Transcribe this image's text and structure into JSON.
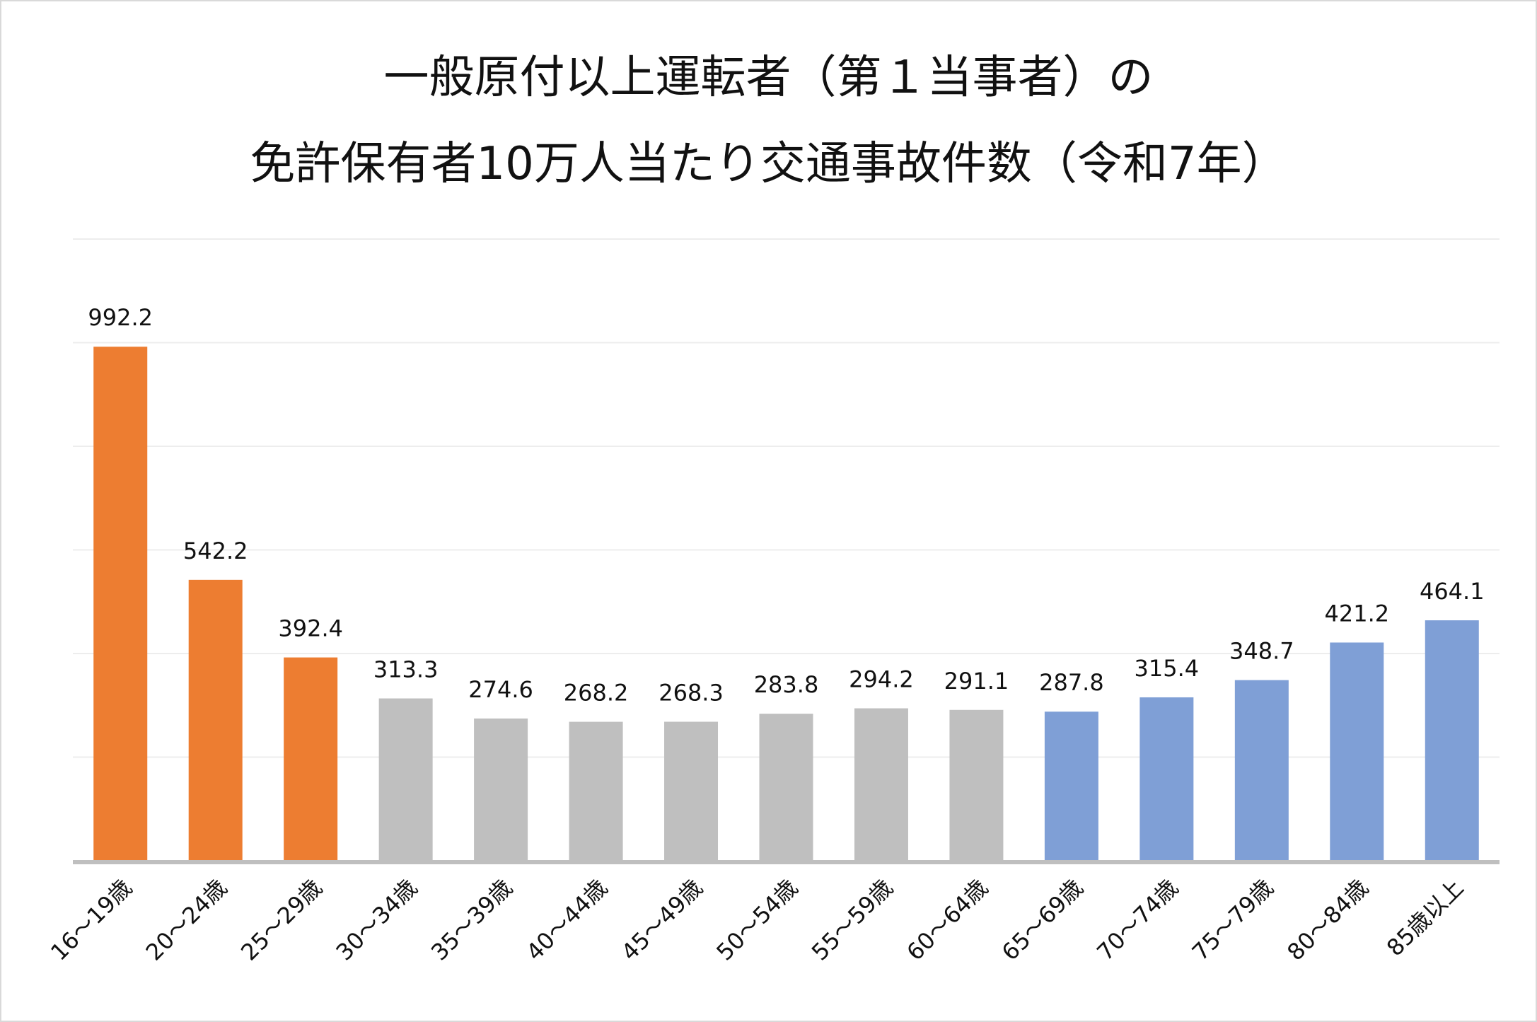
{
  "chart_data": {
    "type": "bar",
    "title_lines": [
      "一般原付以上運転者（第１当事者）の",
      "免許保有者10万人当たり交通事故件数（令和7年）"
    ],
    "xlabel": "",
    "ylabel": "",
    "ylim": [
      0,
      1200
    ],
    "grid_step": 200,
    "grid": true,
    "categories": [
      "16～19歳",
      "20～24歳",
      "25～29歳",
      "30～34歳",
      "35～39歳",
      "40～44歳",
      "45～49歳",
      "50～54歳",
      "55～59歳",
      "60～64歳",
      "65～69歳",
      "70～74歳",
      "75～79歳",
      "80～84歳",
      "85歳以上"
    ],
    "values": [
      992.2,
      542.2,
      392.4,
      313.3,
      274.6,
      268.2,
      268.3,
      283.8,
      294.2,
      291.1,
      287.8,
      315.4,
      348.7,
      421.2,
      464.1
    ],
    "value_labels": [
      "992.2",
      "542.2",
      "392.4",
      "313.3",
      "274.6",
      "268.2",
      "268.3",
      "283.8",
      "294.2",
      "291.1",
      "287.8",
      "315.4",
      "348.7",
      "421.2",
      "464.1"
    ],
    "bar_colors": [
      "#ED7D31",
      "#ED7D31",
      "#ED7D31",
      "#BFBFBF",
      "#BFBFBF",
      "#BFBFBF",
      "#BFBFBF",
      "#BFBFBF",
      "#BFBFBF",
      "#BFBFBF",
      "#7F9FD6",
      "#7F9FD6",
      "#7F9FD6",
      "#7F9FD6",
      "#7F9FD6"
    ],
    "gridline_color": "#EDEDED",
    "axis_color": "#BFBFBF"
  }
}
